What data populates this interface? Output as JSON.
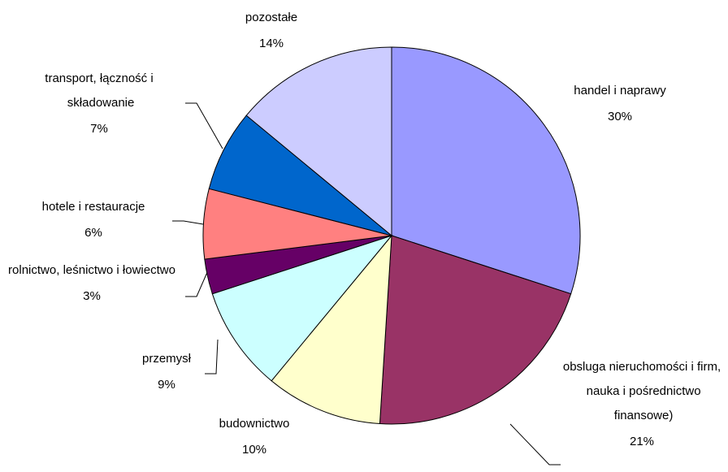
{
  "chart_data": {
    "type": "pie",
    "categories": [
      "handel i naprawy",
      "obsluga nieruchomości i firm, nauka i pośrednictwo finansowe)",
      "budownictwo",
      "przemysł",
      "rolnictwo, leśnictwo i łowiectwo",
      "hotele i restauracje",
      "transport, łączność i składowanie",
      "pozostałe"
    ],
    "values": [
      30,
      21,
      10,
      9,
      3,
      6,
      7,
      14
    ],
    "value_labels": [
      "30%",
      "21%",
      "10%",
      "9%",
      "3%",
      "6%",
      "7%",
      "14%"
    ],
    "colors": [
      "#9999ff",
      "#993366",
      "#ffffcc",
      "#ccffff",
      "#660066",
      "#ff8080",
      "#0066cc",
      "#ccccff"
    ]
  }
}
